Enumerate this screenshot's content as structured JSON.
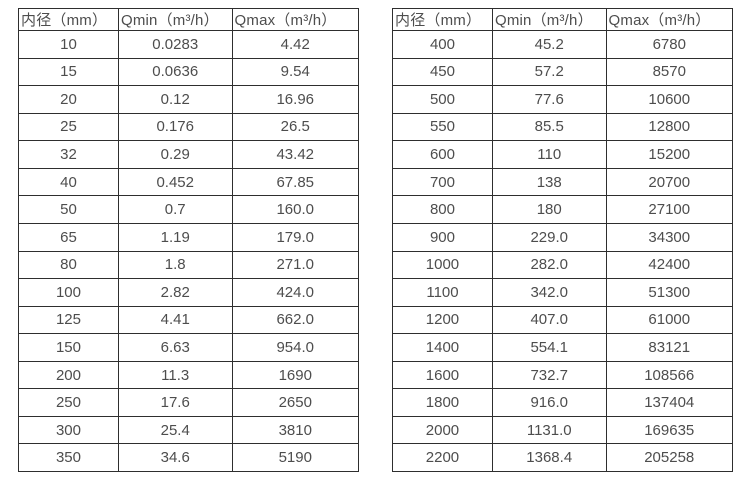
{
  "colors": {
    "background": "#ffffff",
    "border": "#2e2e2e",
    "text": "#4d4d4d"
  },
  "tables": [
    {
      "name": "flow-spec-table-small-diameters",
      "headers": [
        "内径（mm）",
        "Qmin（m³/h）",
        "Qmax（m³/h）"
      ],
      "rows": [
        [
          "10",
          "0.0283",
          "4.42"
        ],
        [
          "15",
          "0.0636",
          "9.54"
        ],
        [
          "20",
          "0.12",
          "16.96"
        ],
        [
          "25",
          "0.176",
          "26.5"
        ],
        [
          "32",
          "0.29",
          "43.42"
        ],
        [
          "40",
          "0.452",
          "67.85"
        ],
        [
          "50",
          "0.7",
          "160.0"
        ],
        [
          "65",
          "1.19",
          "179.0"
        ],
        [
          "80",
          "1.8",
          "271.0"
        ],
        [
          "100",
          "2.82",
          "424.0"
        ],
        [
          "125",
          "4.41",
          "662.0"
        ],
        [
          "150",
          "6.63",
          "954.0"
        ],
        [
          "200",
          "11.3",
          "1690"
        ],
        [
          "250",
          "17.6",
          "2650"
        ],
        [
          "300",
          "25.4",
          "3810"
        ],
        [
          "350",
          "34.6",
          "5190"
        ]
      ]
    },
    {
      "name": "flow-spec-table-large-diameters",
      "headers": [
        "内径（mm）",
        "Qmin（m³/h）",
        "Qmax（m³/h）"
      ],
      "rows": [
        [
          "400",
          "45.2",
          "6780"
        ],
        [
          "450",
          "57.2",
          "8570"
        ],
        [
          "500",
          "77.6",
          "10600"
        ],
        [
          "550",
          "85.5",
          "12800"
        ],
        [
          "600",
          "110",
          "15200"
        ],
        [
          "700",
          "138",
          "20700"
        ],
        [
          "800",
          "180",
          "27100"
        ],
        [
          "900",
          "229.0",
          "34300"
        ],
        [
          "1000",
          "282.0",
          "42400"
        ],
        [
          "1100",
          "342.0",
          "51300"
        ],
        [
          "1200",
          "407.0",
          "61000"
        ],
        [
          "1400",
          "554.1",
          "83121"
        ],
        [
          "1600",
          "732.7",
          "108566"
        ],
        [
          "1800",
          "916.0",
          "137404"
        ],
        [
          "2000",
          "1131.0",
          "169635"
        ],
        [
          "2200",
          "1368.4",
          "205258"
        ]
      ]
    }
  ]
}
